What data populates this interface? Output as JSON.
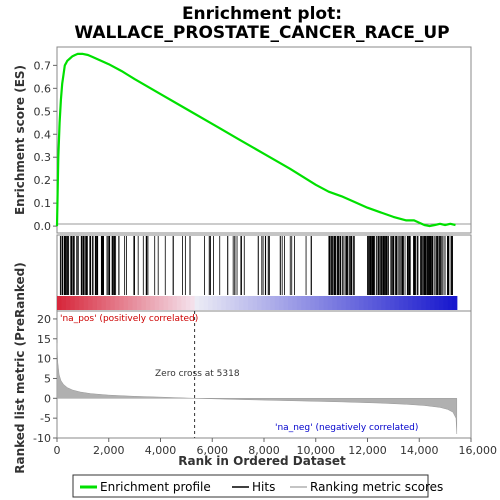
{
  "title_line1": "Enrichment plot:",
  "title_line2": "WALLACE_PROSTATE_CANCER_RACE_UP",
  "colors": {
    "es_line": "#00e000",
    "hits": "#000000",
    "metric": "#b0b0b0",
    "pos_label": "#cc0000",
    "neg_label": "#0000cc",
    "zero_cross": "#333333"
  },
  "labels": {
    "pos": "'na_pos' (positively correlated)",
    "neg": "'na_neg' (negatively correlated)",
    "zero_cross": "Zero cross at 5318"
  },
  "legend": {
    "enrichment": "Enrichment profile",
    "hits": "Hits",
    "ranking": "Ranking metric scores"
  },
  "chart_data": [
    {
      "type": "line",
      "name": "enrichment",
      "ylabel": "Enrichment score (ES)",
      "xlim": [
        0,
        16000
      ],
      "ylim": [
        -0.03,
        0.78
      ],
      "yticks": [
        "0.0",
        "0.1",
        "0.2",
        "0.3",
        "0.4",
        "0.5",
        "0.6",
        "0.7"
      ],
      "grid": false,
      "x": [
        0,
        50,
        100,
        150,
        200,
        250,
        300,
        350,
        400,
        500,
        600,
        700,
        800,
        900,
        1000,
        1200,
        1400,
        1700,
        2000,
        2500,
        3000,
        4000,
        5000,
        6000,
        7000,
        8000,
        9000,
        10000,
        10500,
        11000,
        11500,
        12000,
        12500,
        13000,
        13500,
        13800,
        14000,
        14200,
        14400,
        14600,
        14800,
        15000,
        15200,
        15400
      ],
      "y": [
        0.0,
        0.3,
        0.45,
        0.55,
        0.62,
        0.66,
        0.7,
        0.71,
        0.72,
        0.73,
        0.74,
        0.745,
        0.75,
        0.75,
        0.75,
        0.745,
        0.735,
        0.72,
        0.705,
        0.675,
        0.64,
        0.575,
        0.51,
        0.445,
        0.38,
        0.315,
        0.25,
        0.18,
        0.15,
        0.13,
        0.105,
        0.08,
        0.06,
        0.04,
        0.025,
        0.025,
        0.015,
        0.005,
        0.0,
        0.005,
        0.01,
        0.005,
        0.01,
        0.005
      ]
    },
    {
      "type": "scatter",
      "name": "hits",
      "note": "hit positions in rank order",
      "x_dense_ranges": [
        [
          20,
          2300
        ],
        [
          10500,
          11500
        ],
        [
          12000,
          13500
        ],
        [
          13500,
          15300
        ]
      ],
      "x_sparse_ranges": [
        [
          2300,
          5300
        ],
        [
          5300,
          10000
        ]
      ]
    },
    {
      "type": "area",
      "name": "ranked_list_metric",
      "xlabel": "Rank in Ordered Dataset",
      "ylabel": "Ranked list metric (PreRanked)",
      "xlim": [
        0,
        16000
      ],
      "ylim": [
        -10,
        22
      ],
      "xticks": [
        "0",
        "2,000",
        "4,000",
        "6,000",
        "8,000",
        "10,000",
        "12,000",
        "14,000",
        "16,000"
      ],
      "yticks": [
        "-10",
        "-5",
        "0",
        "5",
        "10",
        "15",
        "20"
      ],
      "zero_cross": 5318,
      "x": [
        0,
        30,
        80,
        150,
        250,
        400,
        600,
        900,
        1300,
        2000,
        3000,
        4000,
        5318,
        7000,
        9000,
        11000,
        12500,
        13500,
        14200,
        14800,
        15100,
        15300,
        15420,
        15450
      ],
      "y": [
        14,
        9,
        6,
        4.5,
        3.5,
        2.7,
        2.1,
        1.6,
        1.2,
        0.8,
        0.5,
        0.3,
        0.0,
        -0.3,
        -0.6,
        -0.9,
        -1.2,
        -1.5,
        -1.8,
        -2.3,
        -2.8,
        -3.5,
        -5.0,
        -9.0
      ]
    }
  ]
}
